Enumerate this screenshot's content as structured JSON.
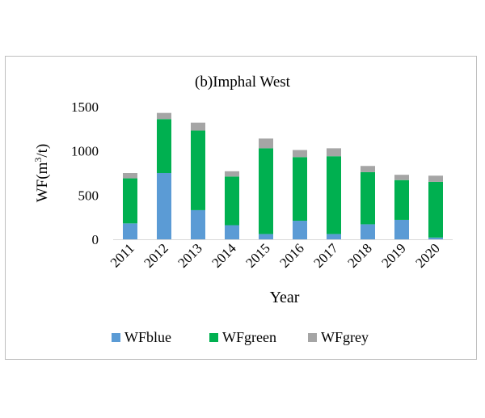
{
  "chart_data": {
    "type": "bar",
    "stacked": true,
    "title": "(b)Imphal  West",
    "xlabel": "Year",
    "ylabel_main": "WF(m",
    "ylabel_sup": "3",
    "ylabel_tail": "/t)",
    "categories": [
      "2011",
      "2012",
      "2013",
      "2014",
      "2015",
      "2016",
      "2017",
      "2018",
      "2019",
      "2020"
    ],
    "series": [
      {
        "name": "WFblue",
        "color": "#5b9bd5",
        "values": [
          180,
          750,
          330,
          160,
          60,
          210,
          60,
          170,
          220,
          20
        ]
      },
      {
        "name": "WFgreen",
        "color": "#00b050",
        "values": [
          510,
          610,
          900,
          550,
          970,
          720,
          880,
          590,
          450,
          630
        ]
      },
      {
        "name": "WFgrey",
        "color": "#a5a5a5",
        "values": [
          60,
          70,
          90,
          60,
          110,
          80,
          90,
          70,
          60,
          70
        ]
      }
    ],
    "yticks": [
      0,
      500,
      1000,
      1500
    ],
    "ylim": [
      0,
      1500
    ],
    "grid": false,
    "legend_position": "bottom"
  }
}
